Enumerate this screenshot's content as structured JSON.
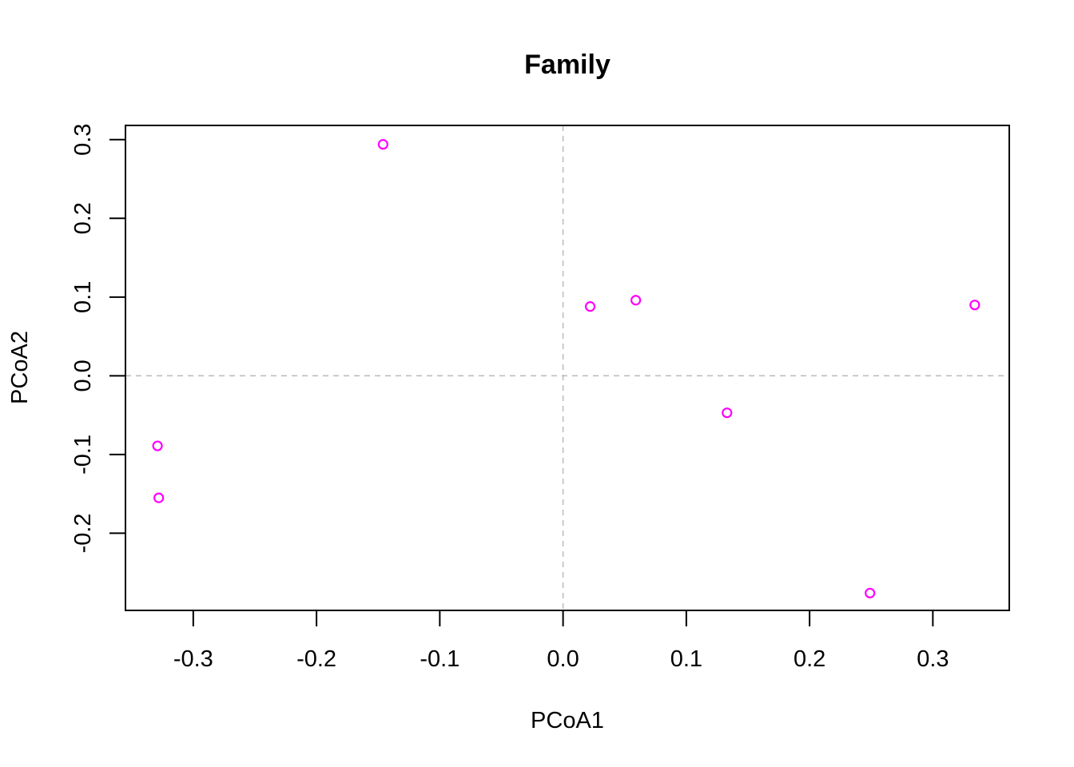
{
  "chart_data": {
    "type": "scatter",
    "title": "Family",
    "xlabel": "PCoA1",
    "ylabel": "PCoA2",
    "xlim": [
      -0.355,
      0.362
    ],
    "ylim": [
      -0.298,
      0.318
    ],
    "x_ticks": [
      -0.3,
      -0.2,
      -0.1,
      0.0,
      0.1,
      0.2,
      0.3
    ],
    "x_tick_labels": [
      "-0.3",
      "-0.2",
      "-0.1",
      "0.0",
      "0.1",
      "0.2",
      "0.3"
    ],
    "y_ticks": [
      -0.2,
      -0.1,
      0.0,
      0.1,
      0.2,
      0.3
    ],
    "y_tick_labels": [
      "-0.2",
      "-0.1",
      "0.0",
      "0.1",
      "0.2",
      "0.3"
    ],
    "reference_lines": {
      "x": 0.0,
      "y": 0.0,
      "style": "dashed",
      "color": "#bebebe"
    },
    "grid": false,
    "legend": "none",
    "marker": {
      "shape": "open-circle",
      "color": "#ff00ff"
    },
    "series": [
      {
        "points": [
          {
            "x": -0.146,
            "y": 0.294
          },
          {
            "x": 0.022,
            "y": 0.088
          },
          {
            "x": 0.059,
            "y": 0.096
          },
          {
            "x": 0.334,
            "y": 0.09
          },
          {
            "x": 0.133,
            "y": -0.047
          },
          {
            "x": -0.329,
            "y": -0.089
          },
          {
            "x": -0.328,
            "y": -0.155
          },
          {
            "x": 0.249,
            "y": -0.276
          }
        ]
      }
    ]
  }
}
